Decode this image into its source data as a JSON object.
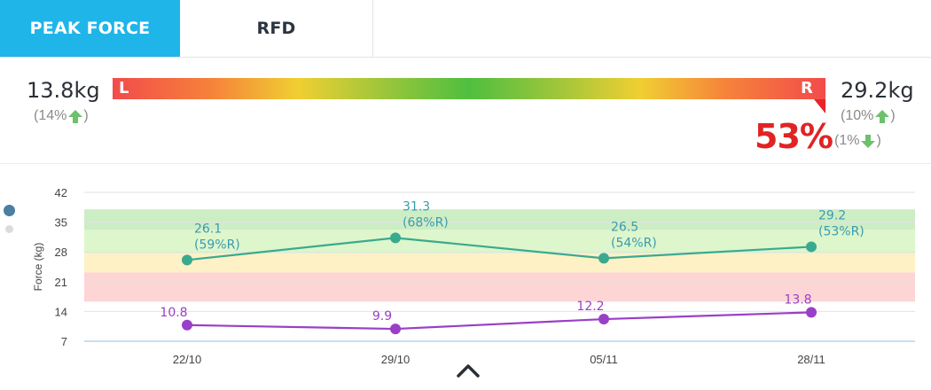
{
  "tabs": [
    {
      "label": "PEAK FORCE",
      "active": true
    },
    {
      "label": "RFD",
      "active": false
    }
  ],
  "summary": {
    "left": {
      "value": "13.8kg",
      "change": "(14%",
      "direction": "up"
    },
    "right": {
      "value": "29.2kg",
      "change": "(10%",
      "direction": "up"
    },
    "bar_left_label": "L",
    "bar_right_label": "R",
    "asymmetry": "53%",
    "asymmetry_change": "(1%",
    "asymmetry_direction": "down",
    "arrow_up_color": "#6cc26b",
    "arrow_down_color": "#6cc26b"
  },
  "chart_data": {
    "type": "line",
    "ylabel": "Force (kg)",
    "ylim": [
      7,
      42
    ],
    "yticks": [
      42,
      35,
      28,
      21,
      14,
      7
    ],
    "categories": [
      "22/10",
      "29/10",
      "05/11",
      "28/11"
    ],
    "bands": [
      {
        "from": 16.3,
        "to": 23.2,
        "color": "#fdd5d5"
      },
      {
        "from": 23.2,
        "to": 27.6,
        "color": "#fdf1c5"
      },
      {
        "from": 27.6,
        "to": 33.2,
        "color": "#def6cc"
      },
      {
        "from": 33.2,
        "to": 38.0,
        "color": "#cdedc4"
      }
    ],
    "series": [
      {
        "values": [
          26.1,
          31.3,
          26.5,
          29.2
        ],
        "labels": [
          "26.1",
          "31.3",
          "26.5",
          "29.2"
        ],
        "sublabels": [
          "(59%R)",
          "(68%R)",
          "(54%R)",
          "(53%R)"
        ],
        "color": "#3aaa8e",
        "label_color": "#3a9bb0"
      },
      {
        "values": [
          10.8,
          9.9,
          12.2,
          13.8
        ],
        "labels": [
          "10.8",
          "9.9",
          "12.2",
          "13.8"
        ],
        "color": "#9a3fc7",
        "label_color": "#9a3fc7"
      }
    ]
  },
  "icons": {
    "collapse": "chevron-up-icon"
  }
}
